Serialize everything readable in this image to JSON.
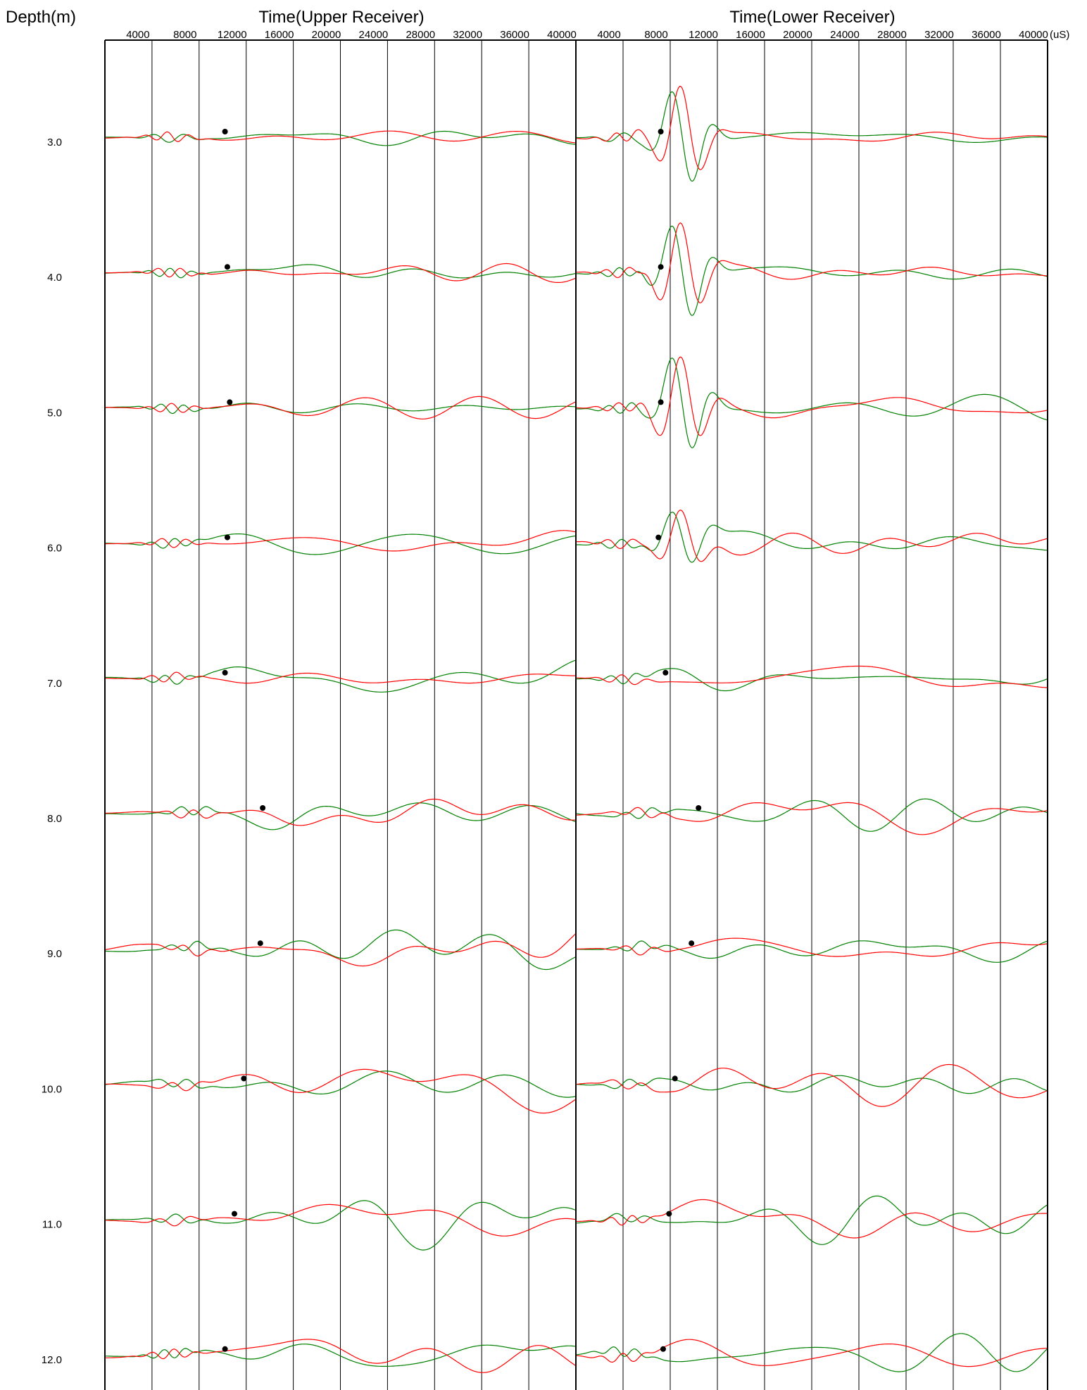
{
  "chart_data": {
    "type": "line",
    "depth_label": "Depth(m)",
    "x_unit_label": "(uS)",
    "depths": [
      "3.0",
      "4.0",
      "5.0",
      "6.0",
      "7.0",
      "8.0",
      "9.0",
      "10.0",
      "11.0",
      "12.0"
    ],
    "xlim": [
      0,
      40000
    ],
    "x_ticks": [
      4000,
      8000,
      12000,
      16000,
      20000,
      24000,
      28000,
      32000,
      36000,
      40000
    ],
    "grid": true,
    "colors": {
      "trace_a": "#ff0000",
      "trace_b": "#008000",
      "pick": "#000000",
      "grid": "#000000"
    },
    "panels": [
      {
        "title": "Time(Upper Receiver)",
        "tick_labels": [
          "4000",
          "8000",
          "12000",
          "16000",
          "20000",
          "24000",
          "28000",
          "32000",
          "36000",
          "40000"
        ],
        "picks_us": [
          10200,
          10400,
          10600,
          10400,
          10200,
          13400,
          13200,
          11800,
          11000,
          10200
        ]
      },
      {
        "title": "Time(Lower Receiver)",
        "tick_labels": [
          "4000",
          "8000",
          "12000",
          "16000",
          "20000",
          "24000",
          "28000",
          "32000",
          "36000",
          "40000"
        ],
        "picks_us": [
          7200,
          7200,
          7200,
          7000,
          7600,
          10400,
          9800,
          8400,
          7900,
          7400
        ]
      }
    ]
  }
}
